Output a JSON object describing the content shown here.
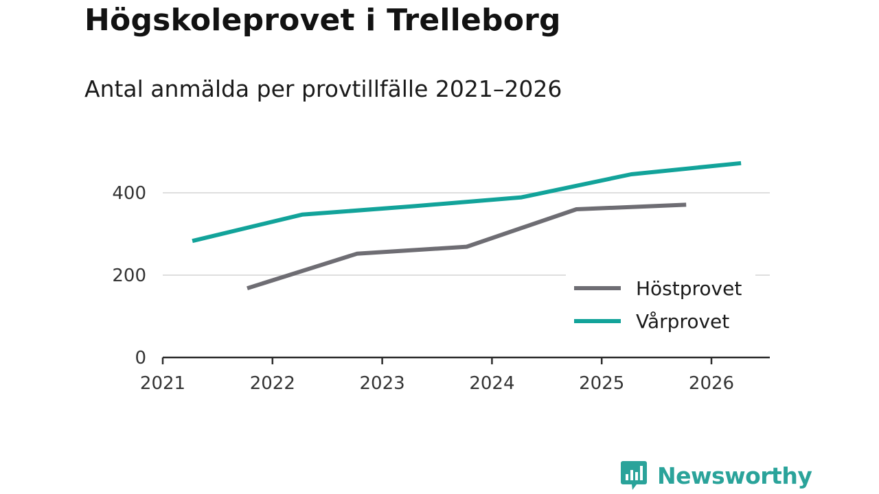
{
  "header": {
    "title": "Högskoleprovet i Trelleborg",
    "subtitle": "Antal anmälda per provtillfälle 2021–2026"
  },
  "brand": {
    "name": "Newsworthy",
    "color": "#2aa39a"
  },
  "chart_data": {
    "type": "line",
    "title": "Högskoleprovet i Trelleborg",
    "subtitle": "Antal anmälda per provtillfälle 2021–2026",
    "xlabel": "",
    "ylabel": "",
    "xlim": [
      2021,
      2026.6
    ],
    "ylim": [
      0,
      500
    ],
    "x_ticks": [
      "2021",
      "2022",
      "2023",
      "2024",
      "2025",
      "2026"
    ],
    "y_ticks": [
      "0",
      "200",
      "400"
    ],
    "grid": true,
    "legend_position": "bottom-right",
    "series": [
      {
        "name": "Höstprovet",
        "color": "#6e6d73",
        "points": [
          {
            "x": 2021.77,
            "y": 168
          },
          {
            "x": 2022.77,
            "y": 252
          },
          {
            "x": 2023.77,
            "y": 269
          },
          {
            "x": 2024.77,
            "y": 360
          },
          {
            "x": 2025.77,
            "y": 371
          }
        ]
      },
      {
        "name": "Vårprovet",
        "color": "#12a39a",
        "points": [
          {
            "x": 2021.27,
            "y": 283
          },
          {
            "x": 2022.27,
            "y": 347
          },
          {
            "x": 2023.27,
            "y": 367
          },
          {
            "x": 2024.27,
            "y": 389
          },
          {
            "x": 2025.27,
            "y": 445
          },
          {
            "x": 2026.27,
            "y": 472
          }
        ]
      }
    ]
  }
}
